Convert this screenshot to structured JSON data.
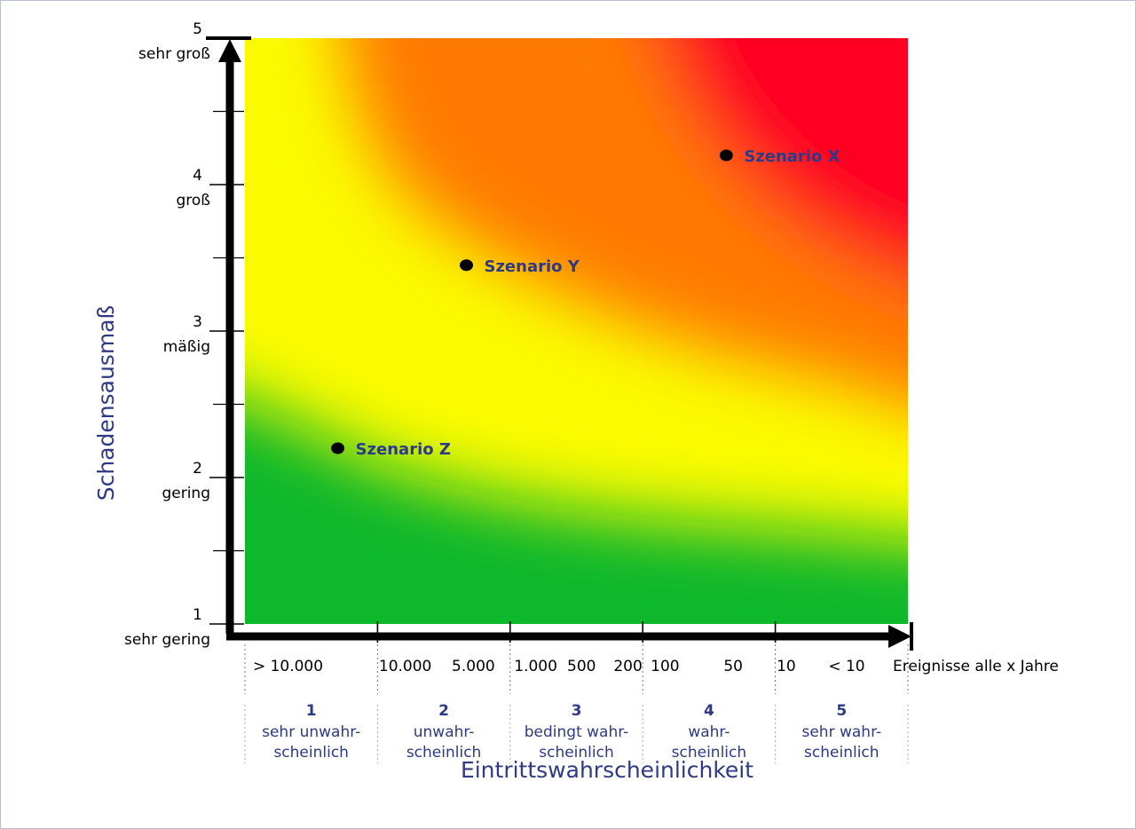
{
  "colors": {
    "axis": "#000000",
    "label_blue": "#2e3a87",
    "frame": "#b9bfd3",
    "green": "#11b829",
    "yellow": "#fbfb00",
    "orange": "#ff7a00",
    "red": "#ff0024"
  },
  "chart_data": {
    "type": "scatter",
    "title": "",
    "xlabel": "Eintrittswahrscheinlichkeit",
    "ylabel": "Schadensausmaß",
    "xlim": [
      1,
      6
    ],
    "ylim": [
      1,
      5
    ],
    "grid": false,
    "background": "risk-gradient green-yellow-red",
    "y_ticks": [
      {
        "value": 1,
        "num": "1",
        "text": "sehr gering"
      },
      {
        "value": 2,
        "num": "2",
        "text": "gering"
      },
      {
        "value": 3,
        "num": "3",
        "text": "mäßig"
      },
      {
        "value": 4,
        "num": "4",
        "text": "groß"
      },
      {
        "value": 5,
        "num": "5",
        "text": "sehr groß"
      }
    ],
    "y_minor_ticks": [
      1.5,
      2.5,
      3.5,
      4.5
    ],
    "x_categories": [
      {
        "num": "1",
        "lines": [
          "sehr unwahr-",
          "scheinlich"
        ]
      },
      {
        "num": "2",
        "lines": [
          "unwahr-",
          "scheinlich"
        ]
      },
      {
        "num": "3",
        "lines": [
          "bedingt wahr-",
          "scheinlich"
        ]
      },
      {
        "num": "4",
        "lines": [
          "wahr-",
          "scheinlich"
        ]
      },
      {
        "num": "5",
        "lines": [
          "sehr wahr-",
          "scheinlich"
        ]
      }
    ],
    "x_tick_labels": [
      {
        "x": 1.08,
        "text": "> 10.000"
      },
      {
        "x": 2.03,
        "text": "10.000"
      },
      {
        "x": 2.58,
        "text": "5.000"
      },
      {
        "x": 3.05,
        "text": "1.000"
      },
      {
        "x": 3.45,
        "text": "500"
      },
      {
        "x": 3.8,
        "text": "200"
      },
      {
        "x": 4.08,
        "text": "100"
      },
      {
        "x": 4.63,
        "text": "50"
      },
      {
        "x": 5.03,
        "text": "10"
      },
      {
        "x": 5.42,
        "text": "< 10"
      }
    ],
    "x_unit_label": "Ereignisse alle x Jahre",
    "points": [
      {
        "name": "Szenario X",
        "x": 4.63,
        "y": 4.2
      },
      {
        "name": "Szenario Y",
        "x": 2.67,
        "y": 3.45
      },
      {
        "name": "Szenario Z",
        "x": 1.7,
        "y": 2.2
      }
    ]
  }
}
